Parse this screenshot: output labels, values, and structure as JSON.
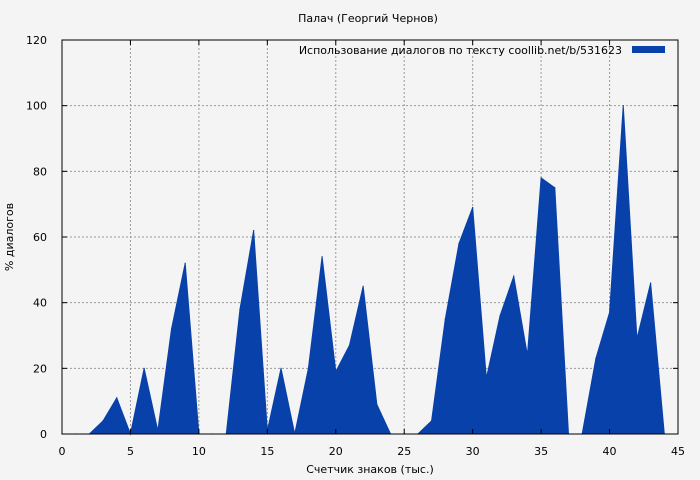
{
  "chart_data": {
    "type": "area",
    "title": "Палач (Георгий Чернов)",
    "xlabel": "Счетчик знаков (тыс.)",
    "ylabel": "% диалогов",
    "xlim": [
      0,
      45
    ],
    "ylim": [
      0,
      120
    ],
    "x_ticks": [
      0,
      5,
      10,
      15,
      20,
      25,
      30,
      35,
      40,
      45
    ],
    "y_ticks": [
      0,
      20,
      40,
      60,
      80,
      100,
      120
    ],
    "grid": true,
    "legend_position": "top-right",
    "color": "#0841a9",
    "series": [
      {
        "name": "Использование диалогов по тексту  coollib.net/b/531623",
        "x": [
          0,
          1,
          2,
          3,
          4,
          5,
          6,
          7,
          8,
          9,
          10,
          11,
          12,
          13,
          14,
          15,
          16,
          17,
          18,
          19,
          20,
          21,
          22,
          23,
          24,
          25,
          26,
          27,
          28,
          29,
          30,
          31,
          32,
          33,
          34,
          35,
          36,
          37,
          38,
          39,
          40,
          41,
          42,
          43,
          44
        ],
        "values": [
          0,
          0,
          0,
          4,
          11,
          0,
          20,
          1,
          32,
          52,
          0,
          0,
          0,
          38,
          62,
          1,
          20,
          0,
          20,
          54,
          19,
          27,
          45,
          9,
          0,
          0,
          0,
          4,
          35,
          58,
          69,
          17,
          36,
          48,
          24,
          78,
          75,
          0,
          0,
          23,
          37,
          100,
          29,
          46,
          0
        ]
      }
    ]
  }
}
